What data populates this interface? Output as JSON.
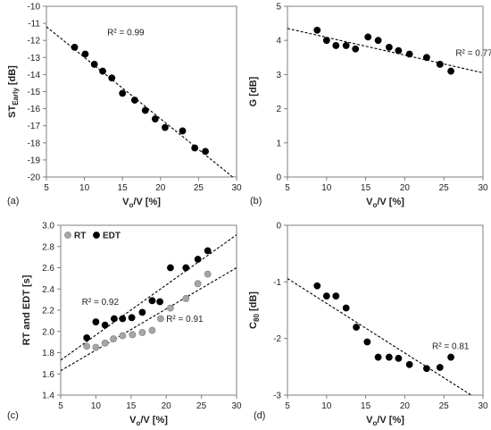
{
  "chart_data": [
    {
      "type": "scatter",
      "panel_label": "(a)",
      "ylabel": "ST",
      "ylabel_sub": "Early",
      "ylabel_suffix": " [dB]",
      "xlabel": "V",
      "xlabel_sub": "o",
      "xlabel_suffix": "/V [%]",
      "xlim": [
        5,
        30
      ],
      "ylim": [
        -20,
        -10
      ],
      "xticks": [
        5,
        10,
        15,
        20,
        25,
        30
      ],
      "yticks": [
        -20,
        -19,
        -18,
        -17,
        -16,
        -15,
        -14,
        -13,
        -12,
        -11,
        -10
      ],
      "series": [
        {
          "marker_color": "#000000",
          "x": [
            8.7,
            10.1,
            11.3,
            12.4,
            13.6,
            15.0,
            16.6,
            18.0,
            19.3,
            20.6,
            22.9,
            24.5,
            25.9
          ],
          "y": [
            -12.4,
            -12.8,
            -13.4,
            -13.8,
            -14.2,
            -15.1,
            -15.5,
            -16.1,
            -16.6,
            -17.1,
            -17.3,
            -18.3,
            -18.5
          ],
          "trend": {
            "x": [
              5,
              29.5
            ],
            "y": [
              -11.2,
              -20.0
            ]
          },
          "r2_label": "R² = 0.99",
          "r2_pos": [
            13.0,
            -11.7
          ]
        }
      ]
    },
    {
      "type": "scatter",
      "panel_label": "(b)",
      "ylabel": "G",
      "ylabel_sub": "",
      "ylabel_suffix": " [dB]",
      "xlabel": "V",
      "xlabel_sub": "o",
      "xlabel_suffix": "/V [%]",
      "xlim": [
        5,
        30
      ],
      "ylim": [
        0,
        5
      ],
      "xticks": [
        5,
        10,
        15,
        20,
        25,
        30
      ],
      "yticks": [
        0,
        1,
        2,
        3,
        4,
        5
      ],
      "series": [
        {
          "marker_color": "#000000",
          "x": [
            8.8,
            10.0,
            11.2,
            12.5,
            13.7,
            15.3,
            16.6,
            18.0,
            19.2,
            20.6,
            22.8,
            24.5,
            25.9
          ],
          "y": [
            4.3,
            4.0,
            3.85,
            3.85,
            3.75,
            4.1,
            4.0,
            3.8,
            3.7,
            3.6,
            3.5,
            3.3,
            3.1
          ],
          "trend": {
            "x": [
              5,
              30
            ],
            "y": [
              4.35,
              3.05
            ]
          },
          "r2_label": "R² = 0.77",
          "r2_pos": [
            26.5,
            3.55
          ]
        }
      ]
    },
    {
      "type": "scatter",
      "panel_label": "(c)",
      "ylabel": "RT and EDT [s]",
      "ylabel_sub": "",
      "ylabel_suffix": "",
      "xlabel": "V",
      "xlabel_sub": "o",
      "xlabel_suffix": "/V [%]",
      "xlim": [
        5,
        30
      ],
      "ylim": [
        1.4,
        3.0
      ],
      "xticks": [
        5,
        10,
        15,
        20,
        25,
        30
      ],
      "yticks": [
        1.4,
        1.6,
        1.8,
        2.0,
        2.2,
        2.4,
        2.6,
        2.8,
        3.0
      ],
      "ytick_labels": [
        "1.4",
        "1.6",
        "1.8",
        "2.0",
        "2.2",
        "2.4",
        "2.6",
        "2.8",
        "3.0"
      ],
      "legend": [
        {
          "name": "RT",
          "color": "#a6a6a6"
        },
        {
          "name": "EDT",
          "color": "#000000"
        }
      ],
      "series": [
        {
          "name": "RT",
          "marker_color": "#a6a6a6",
          "x": [
            8.7,
            10.0,
            11.3,
            12.5,
            13.8,
            15.2,
            16.6,
            18.0,
            19.2,
            20.6,
            22.8,
            24.5,
            25.9
          ],
          "y": [
            1.86,
            1.85,
            1.89,
            1.93,
            1.96,
            1.97,
            1.99,
            2.01,
            2.12,
            2.22,
            2.31,
            2.45,
            2.54
          ],
          "trend": {
            "x": [
              5,
              30
            ],
            "y": [
              1.63,
              2.6
            ]
          },
          "r2_label": "R² = 0.91",
          "r2_pos": [
            20.0,
            2.09
          ]
        },
        {
          "name": "EDT",
          "marker_color": "#000000",
          "x": [
            8.7,
            10.0,
            11.3,
            12.6,
            13.8,
            15.1,
            16.6,
            18.0,
            19.1,
            20.6,
            22.8,
            24.5,
            25.9
          ],
          "y": [
            1.94,
            2.09,
            2.06,
            2.12,
            2.12,
            2.13,
            2.18,
            2.29,
            2.28,
            2.6,
            2.6,
            2.68,
            2.76
          ],
          "trend": {
            "x": [
              5,
              30
            ],
            "y": [
              1.73,
              2.91
            ]
          },
          "r2_label": "R² = 0.92",
          "r2_pos": [
            8.0,
            2.25
          ]
        }
      ]
    },
    {
      "type": "scatter",
      "panel_label": "(d)",
      "ylabel": "C",
      "ylabel_sub": "80",
      "ylabel_suffix": " [dB]",
      "xlabel": "V",
      "xlabel_sub": "o",
      "xlabel_suffix": "/V [%]",
      "xlim": [
        5,
        30
      ],
      "ylim": [
        -3,
        0
      ],
      "xticks": [
        5,
        10,
        15,
        20,
        25,
        30
      ],
      "yticks": [
        -3,
        -2,
        -1,
        0
      ],
      "series": [
        {
          "marker_color": "#000000",
          "x": [
            8.8,
            10.0,
            11.2,
            12.5,
            13.8,
            15.2,
            16.6,
            18.0,
            19.2,
            20.6,
            22.8,
            24.5,
            25.9
          ],
          "y": [
            -1.07,
            -1.25,
            -1.25,
            -1.46,
            -1.8,
            -2.06,
            -2.33,
            -2.33,
            -2.35,
            -2.46,
            -2.53,
            -2.51,
            -2.33
          ],
          "trend": {
            "x": [
              5,
              28.5
            ],
            "y": [
              -0.94,
              -3.0
            ]
          },
          "r2_label": "R² = 0.81",
          "r2_pos": [
            23.5,
            -2.19
          ]
        }
      ]
    }
  ]
}
